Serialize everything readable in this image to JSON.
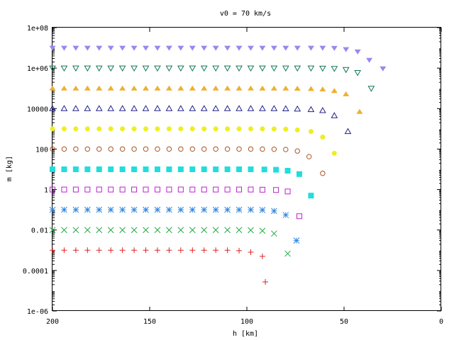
{
  "chart_data": {
    "type": "scatter",
    "title": "v0 = 70 km/s",
    "xlabel": "h [km]",
    "ylabel": "m [kg]",
    "xlim": [
      200,
      0
    ],
    "ylim": [
      1e-06,
      100000000
    ],
    "yscale": "log",
    "grid": false,
    "legend": "none",
    "x_ticks": [
      {
        "value": 200,
        "label": "200"
      },
      {
        "value": 150,
        "label": "150"
      },
      {
        "value": 100,
        "label": "100"
      },
      {
        "value": 50,
        "label": "50"
      },
      {
        "value": 0,
        "label": "0"
      }
    ],
    "y_ticks": [
      {
        "value": 100000000,
        "label": "1e+08"
      },
      {
        "value": 1000000,
        "label": "1e+06"
      },
      {
        "value": 10000,
        "label": "10000"
      },
      {
        "value": 100,
        "label": "100"
      },
      {
        "value": 1,
        "label": "1"
      },
      {
        "value": 0.01,
        "label": "0.01"
      },
      {
        "value": 0.0001,
        "label": "0.0001"
      },
      {
        "value": 1e-06,
        "label": "1e-06"
      }
    ],
    "series": [
      {
        "marker": "plus",
        "color": "#dd2222",
        "x": [
          200,
          194,
          188,
          182,
          176,
          170,
          164,
          158,
          152,
          146,
          140,
          134,
          128,
          122,
          116,
          110,
          104,
          98,
          92,
          90.5
        ],
        "y": [
          0.001,
          0.001,
          0.001,
          0.001,
          0.001,
          0.001,
          0.001,
          0.001,
          0.001,
          0.001,
          0.001,
          0.001,
          0.001,
          0.001,
          0.001,
          0.001,
          0.00095,
          0.0008,
          0.0005,
          2.73e-05
        ]
      },
      {
        "marker": "cross",
        "color": "#22aa44",
        "x": [
          200,
          194,
          188,
          182,
          176,
          170,
          164,
          158,
          152,
          146,
          140,
          134,
          128,
          122,
          116,
          110,
          104,
          98,
          92,
          86,
          79
        ],
        "y": [
          0.01,
          0.01,
          0.01,
          0.01,
          0.01,
          0.01,
          0.01,
          0.01,
          0.01,
          0.01,
          0.01,
          0.01,
          0.01,
          0.01,
          0.01,
          0.01,
          0.01,
          0.0098,
          0.0092,
          0.0067,
          0.00068
        ]
      },
      {
        "marker": "star",
        "color": "#3388dd",
        "x": [
          200,
          194,
          188,
          182,
          176,
          170,
          164,
          158,
          152,
          146,
          140,
          134,
          128,
          122,
          116,
          110,
          104,
          98,
          92,
          86,
          80,
          74.5
        ],
        "y": [
          0.1,
          0.1,
          0.1,
          0.1,
          0.1,
          0.1,
          0.1,
          0.1,
          0.1,
          0.1,
          0.1,
          0.1,
          0.1,
          0.1,
          0.1,
          0.1,
          0.1,
          0.1,
          0.097,
          0.087,
          0.055,
          0.003
        ]
      },
      {
        "marker": "square-open",
        "color": "#bb22cc",
        "x": [
          200,
          194,
          188,
          182,
          176,
          170,
          164,
          158,
          152,
          146,
          140,
          134,
          128,
          122,
          116,
          110,
          104,
          98,
          92,
          85,
          79,
          73
        ],
        "y": [
          1,
          1,
          1,
          1,
          1,
          1,
          1,
          1,
          1,
          1,
          1,
          1,
          1,
          1,
          1,
          1,
          1,
          1,
          0.98,
          0.95,
          0.8,
          0.048
        ]
      },
      {
        "marker": "square-filled",
        "color": "#22dddd",
        "x": [
          200,
          194,
          188,
          182,
          176,
          170,
          164,
          158,
          152,
          146,
          140,
          134,
          128,
          122,
          116,
          110,
          104,
          98,
          91,
          85,
          79,
          73,
          67
        ],
        "y": [
          10,
          10,
          10,
          10,
          10,
          10,
          10,
          10,
          10,
          10,
          10,
          10,
          10,
          10,
          10,
          10,
          10,
          10,
          9.8,
          9.5,
          8.5,
          5.8,
          0.5
        ]
      },
      {
        "marker": "circle-open",
        "color": "#aa5522",
        "x": [
          200,
          194,
          188,
          182,
          176,
          170,
          164,
          158,
          152,
          146,
          140,
          134,
          128,
          122,
          116,
          110,
          104,
          98,
          92,
          86,
          80,
          74,
          68,
          61
        ],
        "y": [
          100,
          100,
          100,
          100,
          100,
          100,
          100,
          100,
          100,
          100,
          100,
          100,
          100,
          100,
          100,
          100,
          100,
          100,
          99,
          98,
          95,
          80,
          42,
          6.3
        ]
      },
      {
        "marker": "circle-filled",
        "color": "#eeee22",
        "x": [
          200,
          194,
          188,
          182,
          176,
          170,
          164,
          158,
          152,
          146,
          140,
          134,
          128,
          122,
          116,
          110,
          104,
          98,
          92,
          86,
          80,
          74,
          67,
          61,
          55
        ],
        "y": [
          1000,
          1000,
          1000,
          1000,
          1000,
          1000,
          1000,
          1000,
          1000,
          1000,
          1000,
          1000,
          1000,
          1000,
          1000,
          1000,
          1000,
          1000,
          1000,
          990,
          960,
          880,
          740,
          390,
          62
        ]
      },
      {
        "marker": "triangle-up-open",
        "color": "#222288",
        "x": [
          200,
          194,
          188,
          182,
          176,
          170,
          164,
          158,
          152,
          146,
          140,
          134,
          128,
          122,
          116,
          110,
          104,
          98,
          92,
          86,
          80,
          74,
          67,
          61,
          55,
          48
        ],
        "y": [
          10000,
          10000,
          10000,
          10000,
          10000,
          10000,
          10000,
          10000,
          10000,
          10000,
          10000,
          10000,
          10000,
          10000,
          10000,
          10000,
          10000,
          10000,
          10000,
          10000,
          9800,
          9500,
          9000,
          8000,
          4500,
          740
        ]
      },
      {
        "marker": "triangle-up-filled",
        "color": "#eeb030",
        "x": [
          200,
          194,
          188,
          182,
          176,
          170,
          164,
          158,
          152,
          146,
          140,
          134,
          128,
          122,
          116,
          110,
          104,
          98,
          92,
          86,
          80,
          74,
          67,
          61,
          55,
          49,
          42
        ],
        "y": [
          100000,
          100000,
          100000,
          100000,
          100000,
          100000,
          100000,
          100000,
          100000,
          100000,
          100000,
          100000,
          100000,
          100000,
          100000,
          100000,
          100000,
          100000,
          100000,
          100000,
          100000,
          98000,
          95000,
          90000,
          75000,
          52000,
          7000
        ]
      },
      {
        "marker": "triangle-down-open",
        "color": "#117755",
        "x": [
          200,
          194,
          188,
          182,
          176,
          170,
          164,
          158,
          152,
          146,
          140,
          134,
          128,
          122,
          116,
          110,
          104,
          98,
          92,
          86,
          80,
          74,
          67,
          61,
          55,
          49,
          43,
          36
        ],
        "y": [
          1000000,
          1000000,
          1000000,
          1000000,
          1000000,
          1000000,
          1000000,
          1000000,
          1000000,
          1000000,
          1000000,
          1000000,
          1000000,
          1000000,
          1000000,
          1000000,
          1000000,
          1000000,
          1000000,
          1000000,
          1000000,
          1000000,
          1000000,
          980000,
          950000,
          840000,
          600000,
          100000
        ]
      },
      {
        "marker": "triangle-down-filled",
        "color": "#9988ee",
        "x": [
          200,
          194,
          188,
          182,
          176,
          170,
          164,
          158,
          152,
          146,
          140,
          134,
          128,
          122,
          116,
          110,
          104,
          98,
          92,
          86,
          80,
          74,
          67,
          61,
          55,
          49,
          43,
          37,
          30
        ],
        "y": [
          10000000,
          10000000,
          10000000,
          10000000,
          10000000,
          10000000,
          10000000,
          10000000,
          10000000,
          10000000,
          10000000,
          10000000,
          10000000,
          10000000,
          10000000,
          10000000,
          10000000,
          10000000,
          10000000,
          10000000,
          10000000,
          10000000,
          10000000,
          10000000,
          9800000,
          8500000,
          6500000,
          2500000,
          950000
        ]
      }
    ]
  }
}
